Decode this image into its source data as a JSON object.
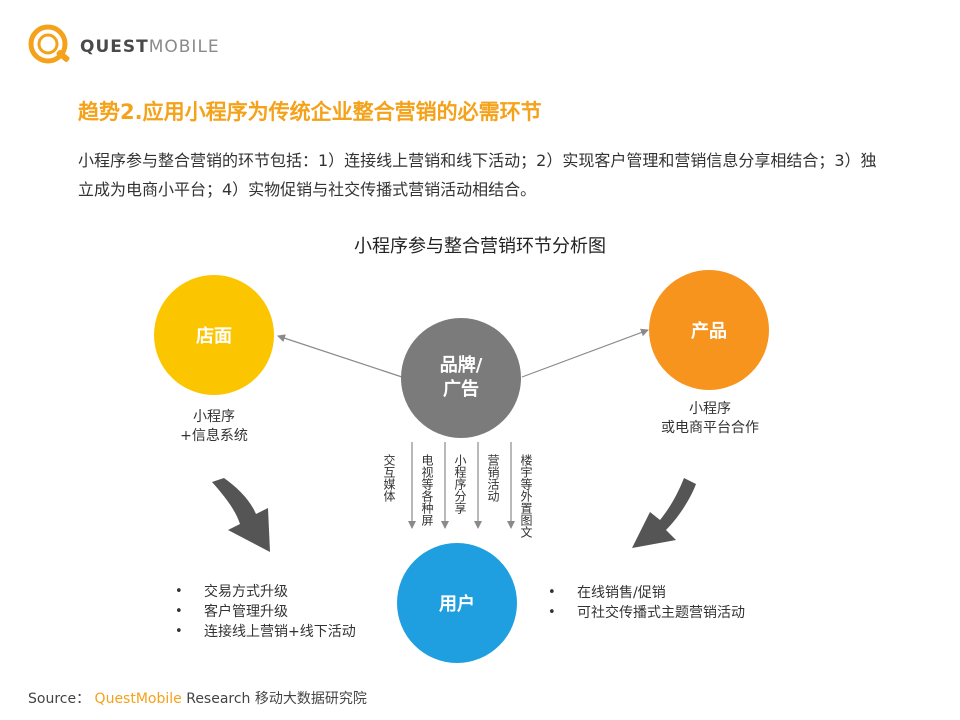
{
  "logo": {
    "text_bold": "QUEST",
    "text_light": "MOBILE"
  },
  "title": "趋势2.应用小程序为传统企业整合营销的必需环节",
  "description": "小程序参与整合营销的环节包括：1）连接线上营销和线下活动；2）实现客户管理和营销信息分享相结合；3）独立成为电商小平台；4）实物促销与社交传播式营销活动相结合。",
  "diagram": {
    "title": "小程序参与整合营销环节分析图",
    "nodes": {
      "store": {
        "label": "店面",
        "sub": [
          "小程序",
          "+信息系统"
        ],
        "color": "#fbc600"
      },
      "product": {
        "label": "产品",
        "sub": [
          "小程序",
          "或电商平台合作"
        ],
        "color": "#f7941d"
      },
      "brand": {
        "label_line1": "品牌/",
        "label_line2": "广告",
        "color": "#7b7b7b"
      },
      "user": {
        "label": "用户",
        "color": "#1f9fe0"
      }
    },
    "channels": [
      "交互媒体",
      "电视等各种屏",
      "小程序分享",
      "营销活动",
      "楼宇等外置图文"
    ],
    "left_bullets": [
      "交易方式升级",
      "客户管理升级",
      "连接线上营销+线下活动"
    ],
    "right_bullets": [
      "在线销售/促销",
      "可社交传播式主题营销活动"
    ]
  },
  "source": {
    "prefix": "Source：",
    "brand": "QuestMobile",
    "rest": " Research 移动大数据研究院"
  },
  "colors": {
    "accent": "#f5a21b",
    "arrow_gray": "#555555",
    "line_gray": "#8a8a8a"
  }
}
